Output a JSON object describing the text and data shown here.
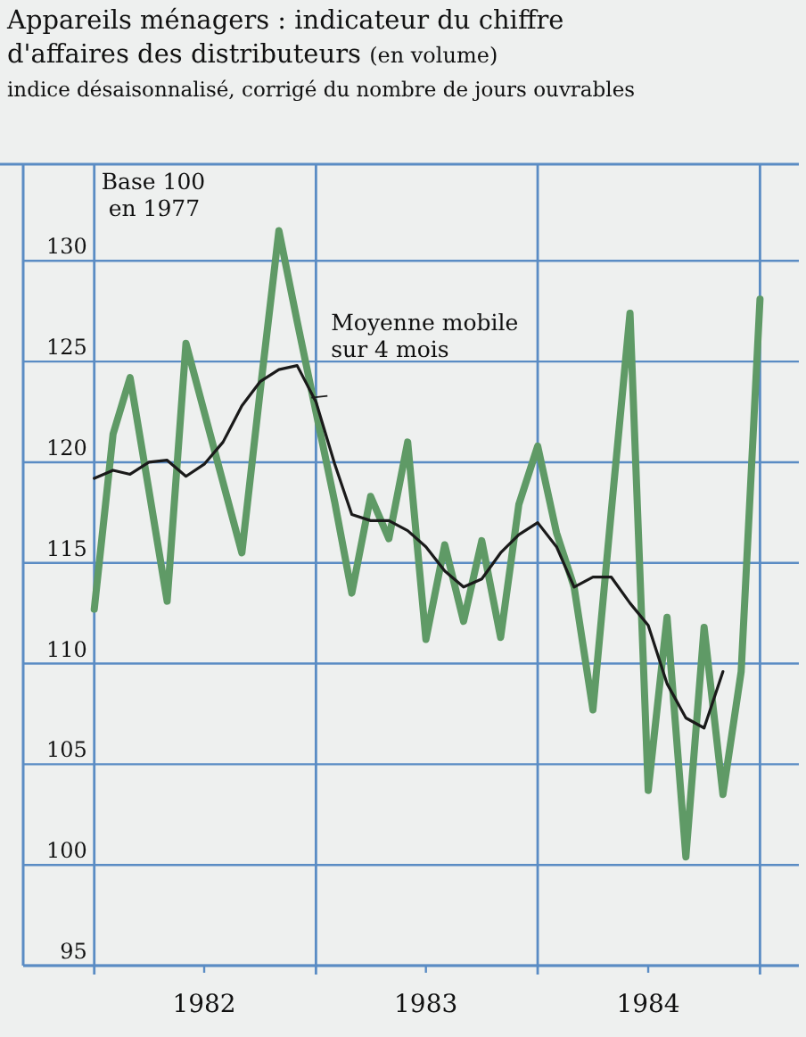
{
  "chart_data": {
    "type": "line",
    "title": "Appareils ménagers : indicateur du chiffre d'affaires des distributeurs (en volume)",
    "subtitle": "indice désaisonnalisé, corrigé du nombre de jours ouvrables",
    "annotations": [
      "Base 100 en 1977"
    ],
    "x": [
      "1982-01",
      "1982-02",
      "1982-03",
      "1982-04",
      "1982-05",
      "1982-06",
      "1982-07",
      "1982-08",
      "1982-09",
      "1982-10",
      "1982-11",
      "1982-12",
      "1983-01",
      "1983-02",
      "1983-03",
      "1983-04",
      "1983-05",
      "1983-06",
      "1983-07",
      "1983-08",
      "1983-09",
      "1983-10",
      "1983-11",
      "1983-12",
      "1984-01",
      "1984-02",
      "1984-03",
      "1984-04",
      "1984-05",
      "1984-06",
      "1984-07",
      "1984-08",
      "1984-09",
      "1984-10",
      "1984-11",
      "1984-12",
      "1985-01"
    ],
    "series": [
      {
        "color": "#5f9a66",
        "values": [
          112.7,
          121.4,
          124.2,
          118.6,
          113.1,
          125.9,
          122.5,
          119,
          115.5,
          123.5,
          131.5,
          127,
          122.5,
          118,
          113.5,
          118.3,
          116.2,
          121,
          111.2,
          115.9,
          112.1,
          116.1,
          111.3,
          117.9,
          120.8,
          116.5,
          113.8,
          107.7,
          117.5,
          127.4,
          103.7,
          112.3,
          100.4,
          111.8,
          103.5,
          109.6,
          128.1
        ]
      },
      {
        "name": "Moyenne mobile sur 4 mois",
        "color": "#1a1a1a",
        "values": [
          119.2,
          119.6,
          119.4,
          120,
          120.1,
          119.3,
          119.9,
          121,
          122.8,
          124,
          124.6,
          124.8,
          123,
          119.9,
          117.4,
          117.1,
          117.1,
          116.6,
          115.8,
          114.6,
          113.8,
          114.2,
          115.5,
          116.4,
          117,
          115.8,
          113.8,
          114.3,
          114.3,
          113,
          111.9,
          109,
          107.3,
          106.8,
          109.6,
          null,
          null
        ]
      }
    ],
    "xlim": [
      "1981-09-06",
      "1985-03-06"
    ],
    "xticks": [
      {
        "value": "1982-01",
        "label": null
      },
      {
        "value": "1982-07",
        "label": "1982"
      },
      {
        "value": "1983-01",
        "label": null
      },
      {
        "value": "1983-07",
        "label": "1983"
      },
      {
        "value": "1984-01",
        "label": null
      },
      {
        "value": "1984-07",
        "label": "1984"
      },
      {
        "value": "1985-01",
        "label": null
      }
    ],
    "ylim": [
      95,
      134.8
    ],
    "yticks": [
      95,
      100,
      105,
      110,
      115,
      120,
      125,
      130
    ],
    "grid": true
  }
}
